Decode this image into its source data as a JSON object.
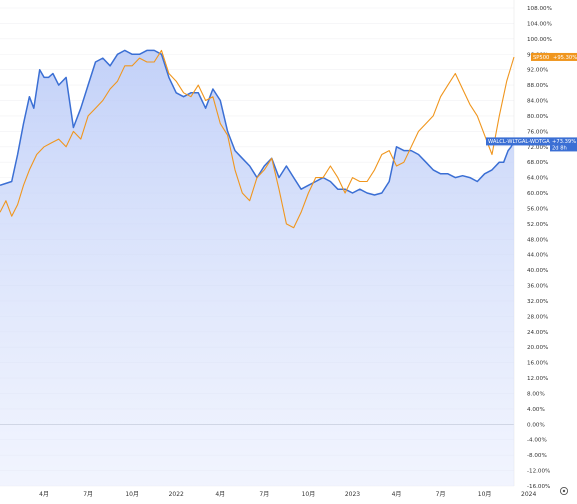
{
  "chart_data": {
    "type": "line",
    "ylim": [
      -16,
      108
    ],
    "y_ticks": [
      108,
      104,
      100,
      96,
      92,
      88,
      84,
      80,
      76,
      72,
      68,
      64,
      60,
      56,
      52,
      48,
      44,
      40,
      36,
      32,
      28,
      24,
      20,
      16,
      12,
      8,
      4,
      0,
      -4,
      -8,
      -12,
      -16
    ],
    "y_unit": "%",
    "xlim": [
      0,
      35
    ],
    "x_ticks": [
      {
        "x": 3,
        "label": "4月"
      },
      {
        "x": 6,
        "label": "7月"
      },
      {
        "x": 9,
        "label": "10月"
      },
      {
        "x": 12,
        "label": "2022"
      },
      {
        "x": 15,
        "label": "4月"
      },
      {
        "x": 18,
        "label": "7月"
      },
      {
        "x": 21,
        "label": "10月"
      },
      {
        "x": 24,
        "label": "2023"
      },
      {
        "x": 27,
        "label": "4月"
      },
      {
        "x": 30,
        "label": "7月"
      },
      {
        "x": 33,
        "label": "10月"
      },
      {
        "x": 36,
        "label": "2024"
      }
    ],
    "grid": true,
    "zero_line": true,
    "series": [
      {
        "name": "WALCL-WLTGAL-WDTGAL",
        "color": "#3b6fd4",
        "area_fill": true,
        "end_label": "+73.39%",
        "end_value": 73.39,
        "end_sublabel": "2d 8h",
        "points": [
          [
            0,
            62
          ],
          [
            0.4,
            62.5
          ],
          [
            0.8,
            63
          ],
          [
            1.2,
            70
          ],
          [
            1.6,
            78
          ],
          [
            2.0,
            85
          ],
          [
            2.3,
            82
          ],
          [
            2.7,
            92
          ],
          [
            3.0,
            90
          ],
          [
            3.3,
            90
          ],
          [
            3.6,
            91
          ],
          [
            4.0,
            88
          ],
          [
            4.5,
            90
          ],
          [
            5.0,
            77
          ],
          [
            5.5,
            82
          ],
          [
            6.0,
            88
          ],
          [
            6.5,
            94
          ],
          [
            7.0,
            95
          ],
          [
            7.5,
            93
          ],
          [
            8.0,
            96
          ],
          [
            8.5,
            97
          ],
          [
            9.0,
            96
          ],
          [
            9.5,
            96
          ],
          [
            10.0,
            97
          ],
          [
            10.5,
            97
          ],
          [
            11.0,
            96
          ],
          [
            11.5,
            90
          ],
          [
            12.0,
            86
          ],
          [
            12.5,
            85
          ],
          [
            13.0,
            86
          ],
          [
            13.5,
            86
          ],
          [
            14.0,
            82
          ],
          [
            14.5,
            87
          ],
          [
            15.0,
            84
          ],
          [
            15.5,
            76
          ],
          [
            16.0,
            71
          ],
          [
            16.5,
            69
          ],
          [
            17.0,
            67
          ],
          [
            17.5,
            64
          ],
          [
            18.0,
            67
          ],
          [
            18.5,
            69
          ],
          [
            19.0,
            64
          ],
          [
            19.5,
            67
          ],
          [
            20.0,
            64
          ],
          [
            20.5,
            61
          ],
          [
            21.0,
            62
          ],
          [
            21.5,
            63
          ],
          [
            22.0,
            64
          ],
          [
            22.5,
            63
          ],
          [
            23.0,
            61
          ],
          [
            23.5,
            61
          ],
          [
            24.0,
            60
          ],
          [
            24.5,
            61
          ],
          [
            25.0,
            60
          ],
          [
            25.5,
            59.5
          ],
          [
            26.0,
            60
          ],
          [
            26.5,
            63
          ],
          [
            27.0,
            72
          ],
          [
            27.5,
            71
          ],
          [
            28.0,
            71
          ],
          [
            28.5,
            70
          ],
          [
            29.0,
            68
          ],
          [
            29.5,
            66
          ],
          [
            30.0,
            65
          ],
          [
            30.5,
            65
          ],
          [
            31.0,
            64
          ],
          [
            31.5,
            64.5
          ],
          [
            32.0,
            64
          ],
          [
            32.5,
            63
          ],
          [
            33.0,
            65
          ],
          [
            33.5,
            66
          ],
          [
            34.0,
            68
          ],
          [
            34.3,
            68
          ],
          [
            34.6,
            71
          ],
          [
            34.8,
            72
          ],
          [
            35.0,
            73.39
          ]
        ]
      },
      {
        "name": "SP500",
        "color": "#f0961e",
        "area_fill": false,
        "end_label": "+95.30%",
        "end_value": 95.3,
        "points": [
          [
            0,
            55
          ],
          [
            0.4,
            58
          ],
          [
            0.8,
            54
          ],
          [
            1.2,
            57
          ],
          [
            1.6,
            62
          ],
          [
            2.0,
            66
          ],
          [
            2.5,
            70
          ],
          [
            3.0,
            72
          ],
          [
            3.5,
            73
          ],
          [
            4.0,
            74
          ],
          [
            4.5,
            72
          ],
          [
            5.0,
            76
          ],
          [
            5.5,
            74
          ],
          [
            6.0,
            80
          ],
          [
            6.5,
            82
          ],
          [
            7.0,
            84
          ],
          [
            7.5,
            87
          ],
          [
            8.0,
            89
          ],
          [
            8.5,
            93
          ],
          [
            9.0,
            93
          ],
          [
            9.5,
            95
          ],
          [
            10.0,
            94
          ],
          [
            10.5,
            94
          ],
          [
            11.0,
            97
          ],
          [
            11.5,
            91
          ],
          [
            12.0,
            89
          ],
          [
            12.5,
            86
          ],
          [
            13.0,
            85
          ],
          [
            13.5,
            88
          ],
          [
            14.0,
            84
          ],
          [
            14.5,
            85
          ],
          [
            15.0,
            78
          ],
          [
            15.5,
            75
          ],
          [
            16.0,
            66
          ],
          [
            16.5,
            60
          ],
          [
            17.0,
            58
          ],
          [
            17.5,
            64
          ],
          [
            18.0,
            66
          ],
          [
            18.5,
            69
          ],
          [
            19.0,
            61
          ],
          [
            19.5,
            52
          ],
          [
            20.0,
            51
          ],
          [
            20.5,
            55
          ],
          [
            21.0,
            60
          ],
          [
            21.5,
            64
          ],
          [
            22.0,
            64
          ],
          [
            22.5,
            67
          ],
          [
            23.0,
            64
          ],
          [
            23.5,
            60
          ],
          [
            24.0,
            64
          ],
          [
            24.5,
            63
          ],
          [
            25.0,
            63
          ],
          [
            25.5,
            66
          ],
          [
            26.0,
            70
          ],
          [
            26.5,
            71
          ],
          [
            27.0,
            67
          ],
          [
            27.5,
            68
          ],
          [
            28.0,
            72
          ],
          [
            28.5,
            76
          ],
          [
            29.0,
            78
          ],
          [
            29.5,
            80
          ],
          [
            30.0,
            85
          ],
          [
            30.5,
            88
          ],
          [
            31.0,
            91
          ],
          [
            31.5,
            87
          ],
          [
            32.0,
            83
          ],
          [
            32.5,
            80
          ],
          [
            33.0,
            75
          ],
          [
            33.5,
            70
          ],
          [
            34.0,
            80
          ],
          [
            34.5,
            89
          ],
          [
            35.0,
            95.3
          ]
        ]
      }
    ]
  },
  "ui": {
    "settings_icon": "gear-icon"
  }
}
